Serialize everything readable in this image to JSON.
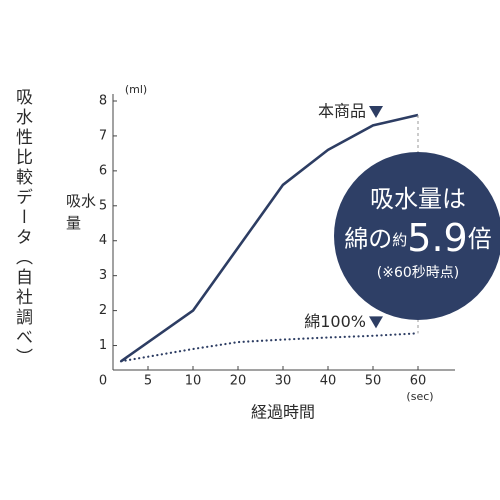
{
  "chart_data": {
    "type": "line",
    "title": "吸水性比較データ（自社調べ）",
    "y_label": "吸水量",
    "y_unit": "(ml)",
    "x_label": "経過時間",
    "x_unit": "(sec)",
    "xticks": [
      0,
      5,
      10,
      20,
      30,
      40,
      50,
      60
    ],
    "yticks": [
      1,
      2,
      3,
      4,
      5,
      6,
      7,
      8
    ],
    "ylim": [
      0.3,
      8.2
    ],
    "series": [
      {
        "name": "本商品",
        "color": "#2d3d63",
        "style": "solid",
        "x": [
          2,
          10,
          30,
          40,
          50,
          60
        ],
        "values": [
          0.55,
          2.0,
          5.6,
          6.6,
          7.3,
          7.6
        ]
      },
      {
        "name": "綿100%",
        "color": "#2d3d63",
        "style": "dotted",
        "x": [
          2,
          10,
          20,
          30,
          40,
          50,
          60
        ],
        "values": [
          0.55,
          0.9,
          1.1,
          1.17,
          1.23,
          1.28,
          1.35
        ]
      }
    ],
    "callout": {
      "line1": "吸水量は",
      "prefix": "綿の",
      "approx": "約",
      "value": 5.9,
      "suffix": "倍",
      "note": "(※60秒時点)",
      "color": "#2e3f66"
    }
  }
}
